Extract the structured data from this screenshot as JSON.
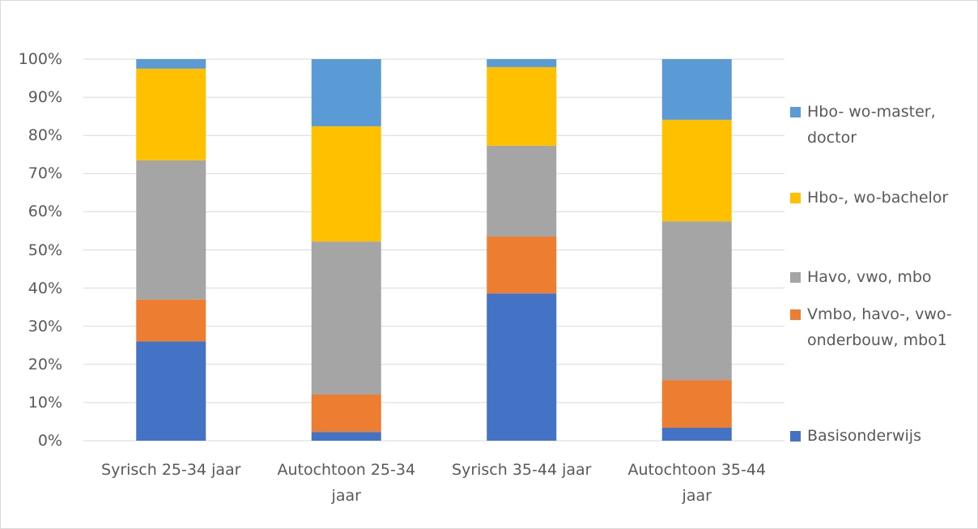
{
  "chart_data": {
    "type": "stacked_bar",
    "categories": [
      "Syrisch 25-34 jaar",
      "Autochtoon 25-34 jaar",
      "Syrisch 35-44 jaar",
      "Autochtoon 35-44 jaar"
    ],
    "series": [
      {
        "name": "Basisonderwijs",
        "color": "#4472c4",
        "values": [
          26,
          2.3,
          38.6,
          3.4
        ]
      },
      {
        "name": "Vmbo, havo-, vwo-onderbouw, mbo1",
        "color": "#ed7d31",
        "values": [
          11,
          9.8,
          14.9,
          12.5
        ]
      },
      {
        "name": "Havo, vwo, mbo",
        "color": "#a5a5a5",
        "values": [
          36.5,
          40.1,
          23.8,
          41.6
        ]
      },
      {
        "name": "Hbo-, wo-bachelor",
        "color": "#ffc000",
        "values": [
          24,
          30.2,
          20.6,
          26.6
        ]
      },
      {
        "name": "Hbo- wo-master, doctor",
        "color": "#5b9bd5",
        "values": [
          2.5,
          17.6,
          2.1,
          15.9
        ]
      }
    ],
    "ylim": [
      0,
      100
    ],
    "yticks": [
      {
        "value": 0,
        "label": "0%"
      },
      {
        "value": 10,
        "label": "10%"
      },
      {
        "value": 20,
        "label": "20%"
      },
      {
        "value": 30,
        "label": "30%"
      },
      {
        "value": 40,
        "label": "40%"
      },
      {
        "value": 50,
        "label": "50%"
      },
      {
        "value": 60,
        "label": "60%"
      },
      {
        "value": 70,
        "label": "70%"
      },
      {
        "value": 80,
        "label": "80%"
      },
      {
        "value": 90,
        "label": "90%"
      },
      {
        "value": 100,
        "label": "100%"
      }
    ],
    "grid": true,
    "legend": "right"
  }
}
